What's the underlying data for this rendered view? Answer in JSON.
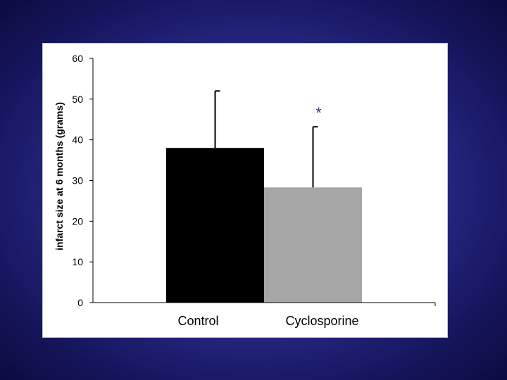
{
  "chart_data": {
    "type": "bar",
    "title": "",
    "xlabel": "",
    "ylabel": "infarct size at 6 months (grams)",
    "ylim": [
      0,
      60
    ],
    "yticks": [
      0,
      10,
      20,
      30,
      40,
      50,
      60
    ],
    "categories": [
      "Control",
      "Cyclosporine"
    ],
    "values": [
      38,
      28.3
    ],
    "error_upper": [
      52,
      43.2
    ],
    "bar_colors": [
      "#000000",
      "#a6a6a6"
    ],
    "significance": [
      "",
      "*"
    ],
    "grid": false
  },
  "colors": {
    "background": "#2a2a8a",
    "panel": "#ffffff",
    "significance_mark": "#3a3a8a"
  }
}
